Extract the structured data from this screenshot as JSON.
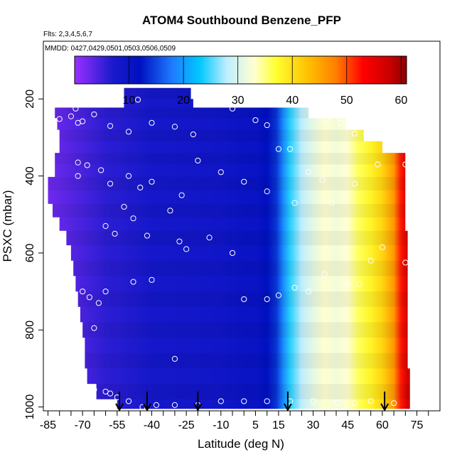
{
  "chart_data": {
    "type": "heatmap",
    "title": "ATOM4 Southbound Benzene_PFP",
    "subtitle_flights": "Flts: 2,3,4,5,6,7",
    "subtitle_dates": "MMDD: 0427,0429,0501,0503,0506,0509",
    "xlabel": "Latitude (deg N)",
    "ylabel": "PSXC (mbar)",
    "xlim": [
      -87,
      85
    ],
    "ylim": [
      1010,
      50
    ],
    "x_ticks": [
      -85,
      -70,
      -55,
      -40,
      -25,
      -10,
      5,
      15,
      30,
      45,
      60,
      75
    ],
    "x_tick_labels": [
      "-85",
      "-70",
      "-55",
      "-40",
      "-25",
      "-10",
      "5",
      "15",
      "30",
      "45",
      "60",
      "75"
    ],
    "x_minor_ticks": [
      -80,
      -75,
      -65,
      -60,
      -50,
      -45,
      -35,
      -30,
      -20,
      -15,
      -5,
      0,
      10,
      20,
      25,
      35,
      40,
      50,
      55,
      65,
      70,
      80
    ],
    "y_ticks": [
      200,
      400,
      600,
      800,
      1000
    ],
    "y_tick_labels": [
      "200",
      "400",
      "600",
      "800",
      "1000"
    ],
    "colorbar": {
      "range": [
        0,
        61
      ],
      "ticks": [
        10,
        20,
        30,
        40,
        50,
        60
      ],
      "tick_labels": [
        "10",
        "20",
        "30",
        "40",
        "50",
        "60"
      ],
      "stops": [
        {
          "v": 0,
          "color": "#9b30ff"
        },
        {
          "v": 7,
          "color": "#1a1acc"
        },
        {
          "v": 12,
          "color": "#0010c0"
        },
        {
          "v": 18,
          "color": "#1e7cff"
        },
        {
          "v": 23,
          "color": "#00c8ff"
        },
        {
          "v": 28,
          "color": "#bfeeff"
        },
        {
          "v": 33,
          "color": "#ffffd0"
        },
        {
          "v": 37,
          "color": "#ffff30"
        },
        {
          "v": 43,
          "color": "#ffbf00"
        },
        {
          "v": 48,
          "color": "#ff7f00"
        },
        {
          "v": 53,
          "color": "#ff0000"
        },
        {
          "v": 58,
          "color": "#c80000"
        },
        {
          "v": 61,
          "color": "#8b0000"
        }
      ]
    },
    "field_profile": [
      {
        "lat": -87,
        "v": 2
      },
      {
        "lat": -60,
        "v": 6
      },
      {
        "lat": -40,
        "v": 8
      },
      {
        "lat": -10,
        "v": 9
      },
      {
        "lat": 0,
        "v": 10
      },
      {
        "lat": 5,
        "v": 10
      },
      {
        "lat": 10,
        "v": 12
      },
      {
        "lat": 14,
        "v": 14
      },
      {
        "lat": 17,
        "v": 19
      },
      {
        "lat": 20,
        "v": 24
      },
      {
        "lat": 25,
        "v": 28
      },
      {
        "lat": 30,
        "v": 31
      },
      {
        "lat": 35,
        "v": 33
      },
      {
        "lat": 40,
        "v": 32
      },
      {
        "lat": 45,
        "v": 33
      },
      {
        "lat": 50,
        "v": 36
      },
      {
        "lat": 55,
        "v": 38
      },
      {
        "lat": 60,
        "v": 41
      },
      {
        "lat": 65,
        "v": 46
      },
      {
        "lat": 68,
        "v": 52
      },
      {
        "lat": 71,
        "v": 57
      }
    ],
    "data_envelope": [
      {
        "p": 190,
        "lat_min": -52,
        "lat_max": -23
      },
      {
        "p": 210,
        "lat_min": -52,
        "lat_max": -22
      },
      {
        "p": 235,
        "lat_min": -82,
        "lat_max": 28
      },
      {
        "p": 265,
        "lat_min": -81,
        "lat_max": 44
      },
      {
        "p": 295,
        "lat_min": -80,
        "lat_max": 52
      },
      {
        "p": 325,
        "lat_min": -80,
        "lat_max": 60
      },
      {
        "p": 355,
        "lat_min": -82,
        "lat_max": 70
      },
      {
        "p": 385,
        "lat_min": -82,
        "lat_max": 70
      },
      {
        "p": 420,
        "lat_min": -85,
        "lat_max": 70
      },
      {
        "p": 455,
        "lat_min": -85,
        "lat_max": 70
      },
      {
        "p": 490,
        "lat_min": -83,
        "lat_max": 70
      },
      {
        "p": 525,
        "lat_min": -80,
        "lat_max": 70
      },
      {
        "p": 560,
        "lat_min": -77,
        "lat_max": 71
      },
      {
        "p": 600,
        "lat_min": -75,
        "lat_max": 71
      },
      {
        "p": 640,
        "lat_min": -74,
        "lat_max": 71
      },
      {
        "p": 680,
        "lat_min": -73,
        "lat_max": 71
      },
      {
        "p": 720,
        "lat_min": -72,
        "lat_max": 71
      },
      {
        "p": 760,
        "lat_min": -71,
        "lat_max": 71
      },
      {
        "p": 800,
        "lat_min": -70,
        "lat_max": 71
      },
      {
        "p": 840,
        "lat_min": -69,
        "lat_max": 71
      },
      {
        "p": 880,
        "lat_min": -69,
        "lat_max": 71
      },
      {
        "p": 920,
        "lat_min": -68,
        "lat_max": 72
      },
      {
        "p": 960,
        "lat_min": -64,
        "lat_max": 72
      },
      {
        "p": 1000,
        "lat_min": -55,
        "lat_max": 72
      }
    ],
    "arrows_lat": [
      -54,
      -42,
      -20,
      19,
      61
    ],
    "points": [
      {
        "lat": -46,
        "p": 202
      },
      {
        "lat": -73,
        "p": 225
      },
      {
        "lat": -65,
        "p": 240
      },
      {
        "lat": -75,
        "p": 245
      },
      {
        "lat": -80,
        "p": 252
      },
      {
        "lat": -72,
        "p": 262
      },
      {
        "lat": -70,
        "p": 258
      },
      {
        "lat": -58,
        "p": 270
      },
      {
        "lat": -50,
        "p": 285
      },
      {
        "lat": -40,
        "p": 262
      },
      {
        "lat": -30,
        "p": 272
      },
      {
        "lat": -22,
        "p": 292
      },
      {
        "lat": -5,
        "p": 225
      },
      {
        "lat": 5,
        "p": 255
      },
      {
        "lat": 10,
        "p": 268
      },
      {
        "lat": 30,
        "p": 230
      },
      {
        "lat": 36,
        "p": 255
      },
      {
        "lat": 42,
        "p": 262
      },
      {
        "lat": 48,
        "p": 290
      },
      {
        "lat": 53,
        "p": 290
      },
      {
        "lat": -72,
        "p": 365
      },
      {
        "lat": -68,
        "p": 372
      },
      {
        "lat": -62,
        "p": 385
      },
      {
        "lat": -72,
        "p": 400
      },
      {
        "lat": -58,
        "p": 420
      },
      {
        "lat": -50,
        "p": 400
      },
      {
        "lat": -45,
        "p": 430
      },
      {
        "lat": -40,
        "p": 415
      },
      {
        "lat": -27,
        "p": 450
      },
      {
        "lat": -20,
        "p": 360
      },
      {
        "lat": -10,
        "p": 390
      },
      {
        "lat": 0,
        "p": 415
      },
      {
        "lat": 10,
        "p": 440
      },
      {
        "lat": 15,
        "p": 330
      },
      {
        "lat": 20,
        "p": 330
      },
      {
        "lat": 22,
        "p": 470
      },
      {
        "lat": 28,
        "p": 390
      },
      {
        "lat": 34,
        "p": 410
      },
      {
        "lat": 38,
        "p": 470
      },
      {
        "lat": 48,
        "p": 420
      },
      {
        "lat": 58,
        "p": 370
      },
      {
        "lat": 70,
        "p": 370
      },
      {
        "lat": -82,
        "p": 545
      },
      {
        "lat": -60,
        "p": 530
      },
      {
        "lat": -56,
        "p": 550
      },
      {
        "lat": -52,
        "p": 480
      },
      {
        "lat": -48,
        "p": 510
      },
      {
        "lat": -42,
        "p": 555
      },
      {
        "lat": -32,
        "p": 490
      },
      {
        "lat": -28,
        "p": 570
      },
      {
        "lat": -25,
        "p": 590
      },
      {
        "lat": -15,
        "p": 560
      },
      {
        "lat": -5,
        "p": 600
      },
      {
        "lat": -70,
        "p": 700
      },
      {
        "lat": -67,
        "p": 715
      },
      {
        "lat": -63,
        "p": 730
      },
      {
        "lat": -60,
        "p": 700
      },
      {
        "lat": -48,
        "p": 675
      },
      {
        "lat": -40,
        "p": 670
      },
      {
        "lat": -65,
        "p": 795
      },
      {
        "lat": -30,
        "p": 875
      },
      {
        "lat": 0,
        "p": 720
      },
      {
        "lat": 10,
        "p": 720
      },
      {
        "lat": 15,
        "p": 710
      },
      {
        "lat": 22,
        "p": 690
      },
      {
        "lat": 28,
        "p": 700
      },
      {
        "lat": 35,
        "p": 655
      },
      {
        "lat": 45,
        "p": 680
      },
      {
        "lat": 50,
        "p": 680
      },
      {
        "lat": 60,
        "p": 585
      },
      {
        "lat": 70,
        "p": 625
      },
      {
        "lat": 55,
        "p": 620
      },
      {
        "lat": -68,
        "p": 960
      },
      {
        "lat": -65,
        "p": 955
      },
      {
        "lat": -60,
        "p": 960
      },
      {
        "lat": -58,
        "p": 965
      },
      {
        "lat": -55,
        "p": 975
      },
      {
        "lat": -50,
        "p": 985
      },
      {
        "lat": -44,
        "p": 1000
      },
      {
        "lat": -38,
        "p": 995
      },
      {
        "lat": -30,
        "p": 995
      },
      {
        "lat": -20,
        "p": 995
      },
      {
        "lat": -10,
        "p": 985
      },
      {
        "lat": 0,
        "p": 985
      },
      {
        "lat": 10,
        "p": 985
      },
      {
        "lat": 20,
        "p": 985
      },
      {
        "lat": 30,
        "p": 985
      },
      {
        "lat": 40,
        "p": 990
      },
      {
        "lat": 48,
        "p": 990
      },
      {
        "lat": 55,
        "p": 985
      },
      {
        "lat": 65,
        "p": 990
      },
      {
        "lat": 75,
        "p": 990
      }
    ]
  }
}
